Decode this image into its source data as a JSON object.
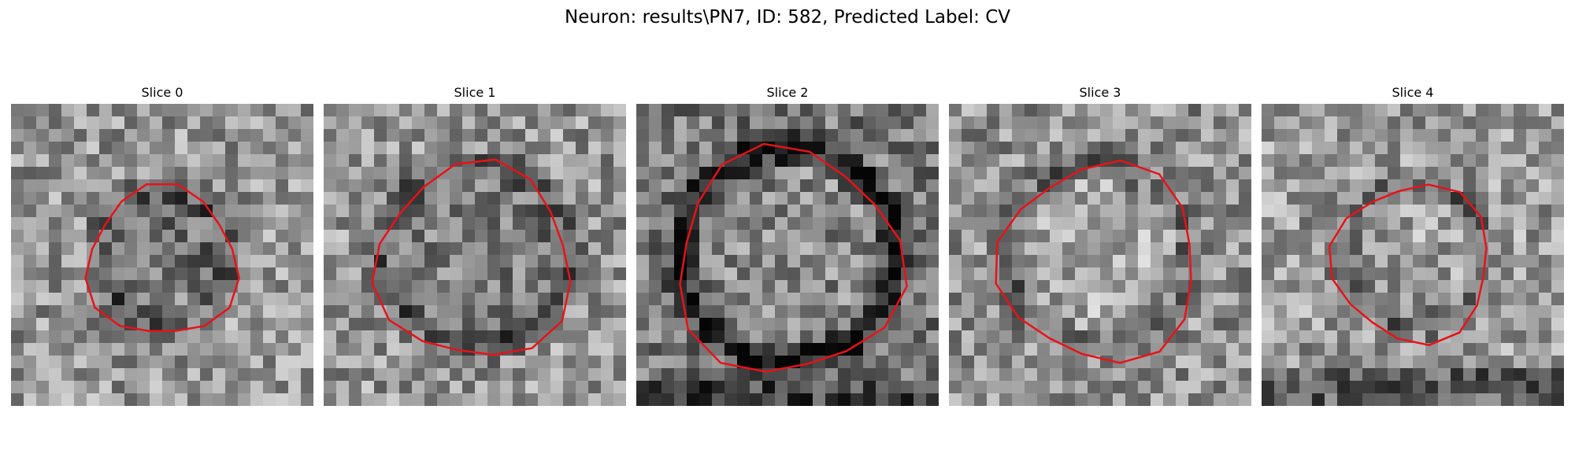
{
  "figure": {
    "title": "Neuron: results\\PN7, ID: 582, Predicted Label: CV"
  },
  "colors": {
    "contour": "#e8121a",
    "background": "#ffffff",
    "image_colormap": "grayscale"
  },
  "slices": [
    {
      "label": "Slice 0"
    },
    {
      "label": "Slice 1"
    },
    {
      "label": "Slice 2"
    },
    {
      "label": "Slice 3"
    },
    {
      "label": "Slice 4"
    }
  ]
}
